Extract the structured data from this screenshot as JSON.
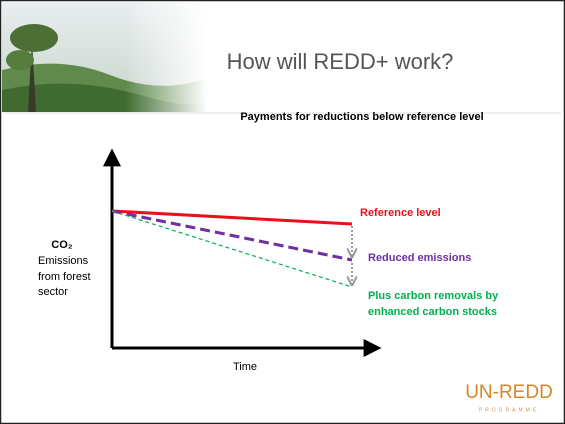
{
  "header": {
    "title": "How will REDD+ work?"
  },
  "diagram": {
    "subtitle": "Payments for reductions below reference level",
    "y_axis": {
      "title": "CO₂",
      "lines": [
        "Emissions",
        "from forest",
        "sector"
      ]
    },
    "x_axis": {
      "title": "Time"
    },
    "lines": [
      {
        "label": [
          "Reference level"
        ]
      },
      {
        "label": [
          "Reduced emissions"
        ]
      },
      {
        "label": [
          "Plus carbon removals by",
          "enhanced carbon stocks"
        ]
      }
    ]
  },
  "logo": {
    "name": "UN-REDD",
    "subtitle": "PROGRAMME"
  }
}
